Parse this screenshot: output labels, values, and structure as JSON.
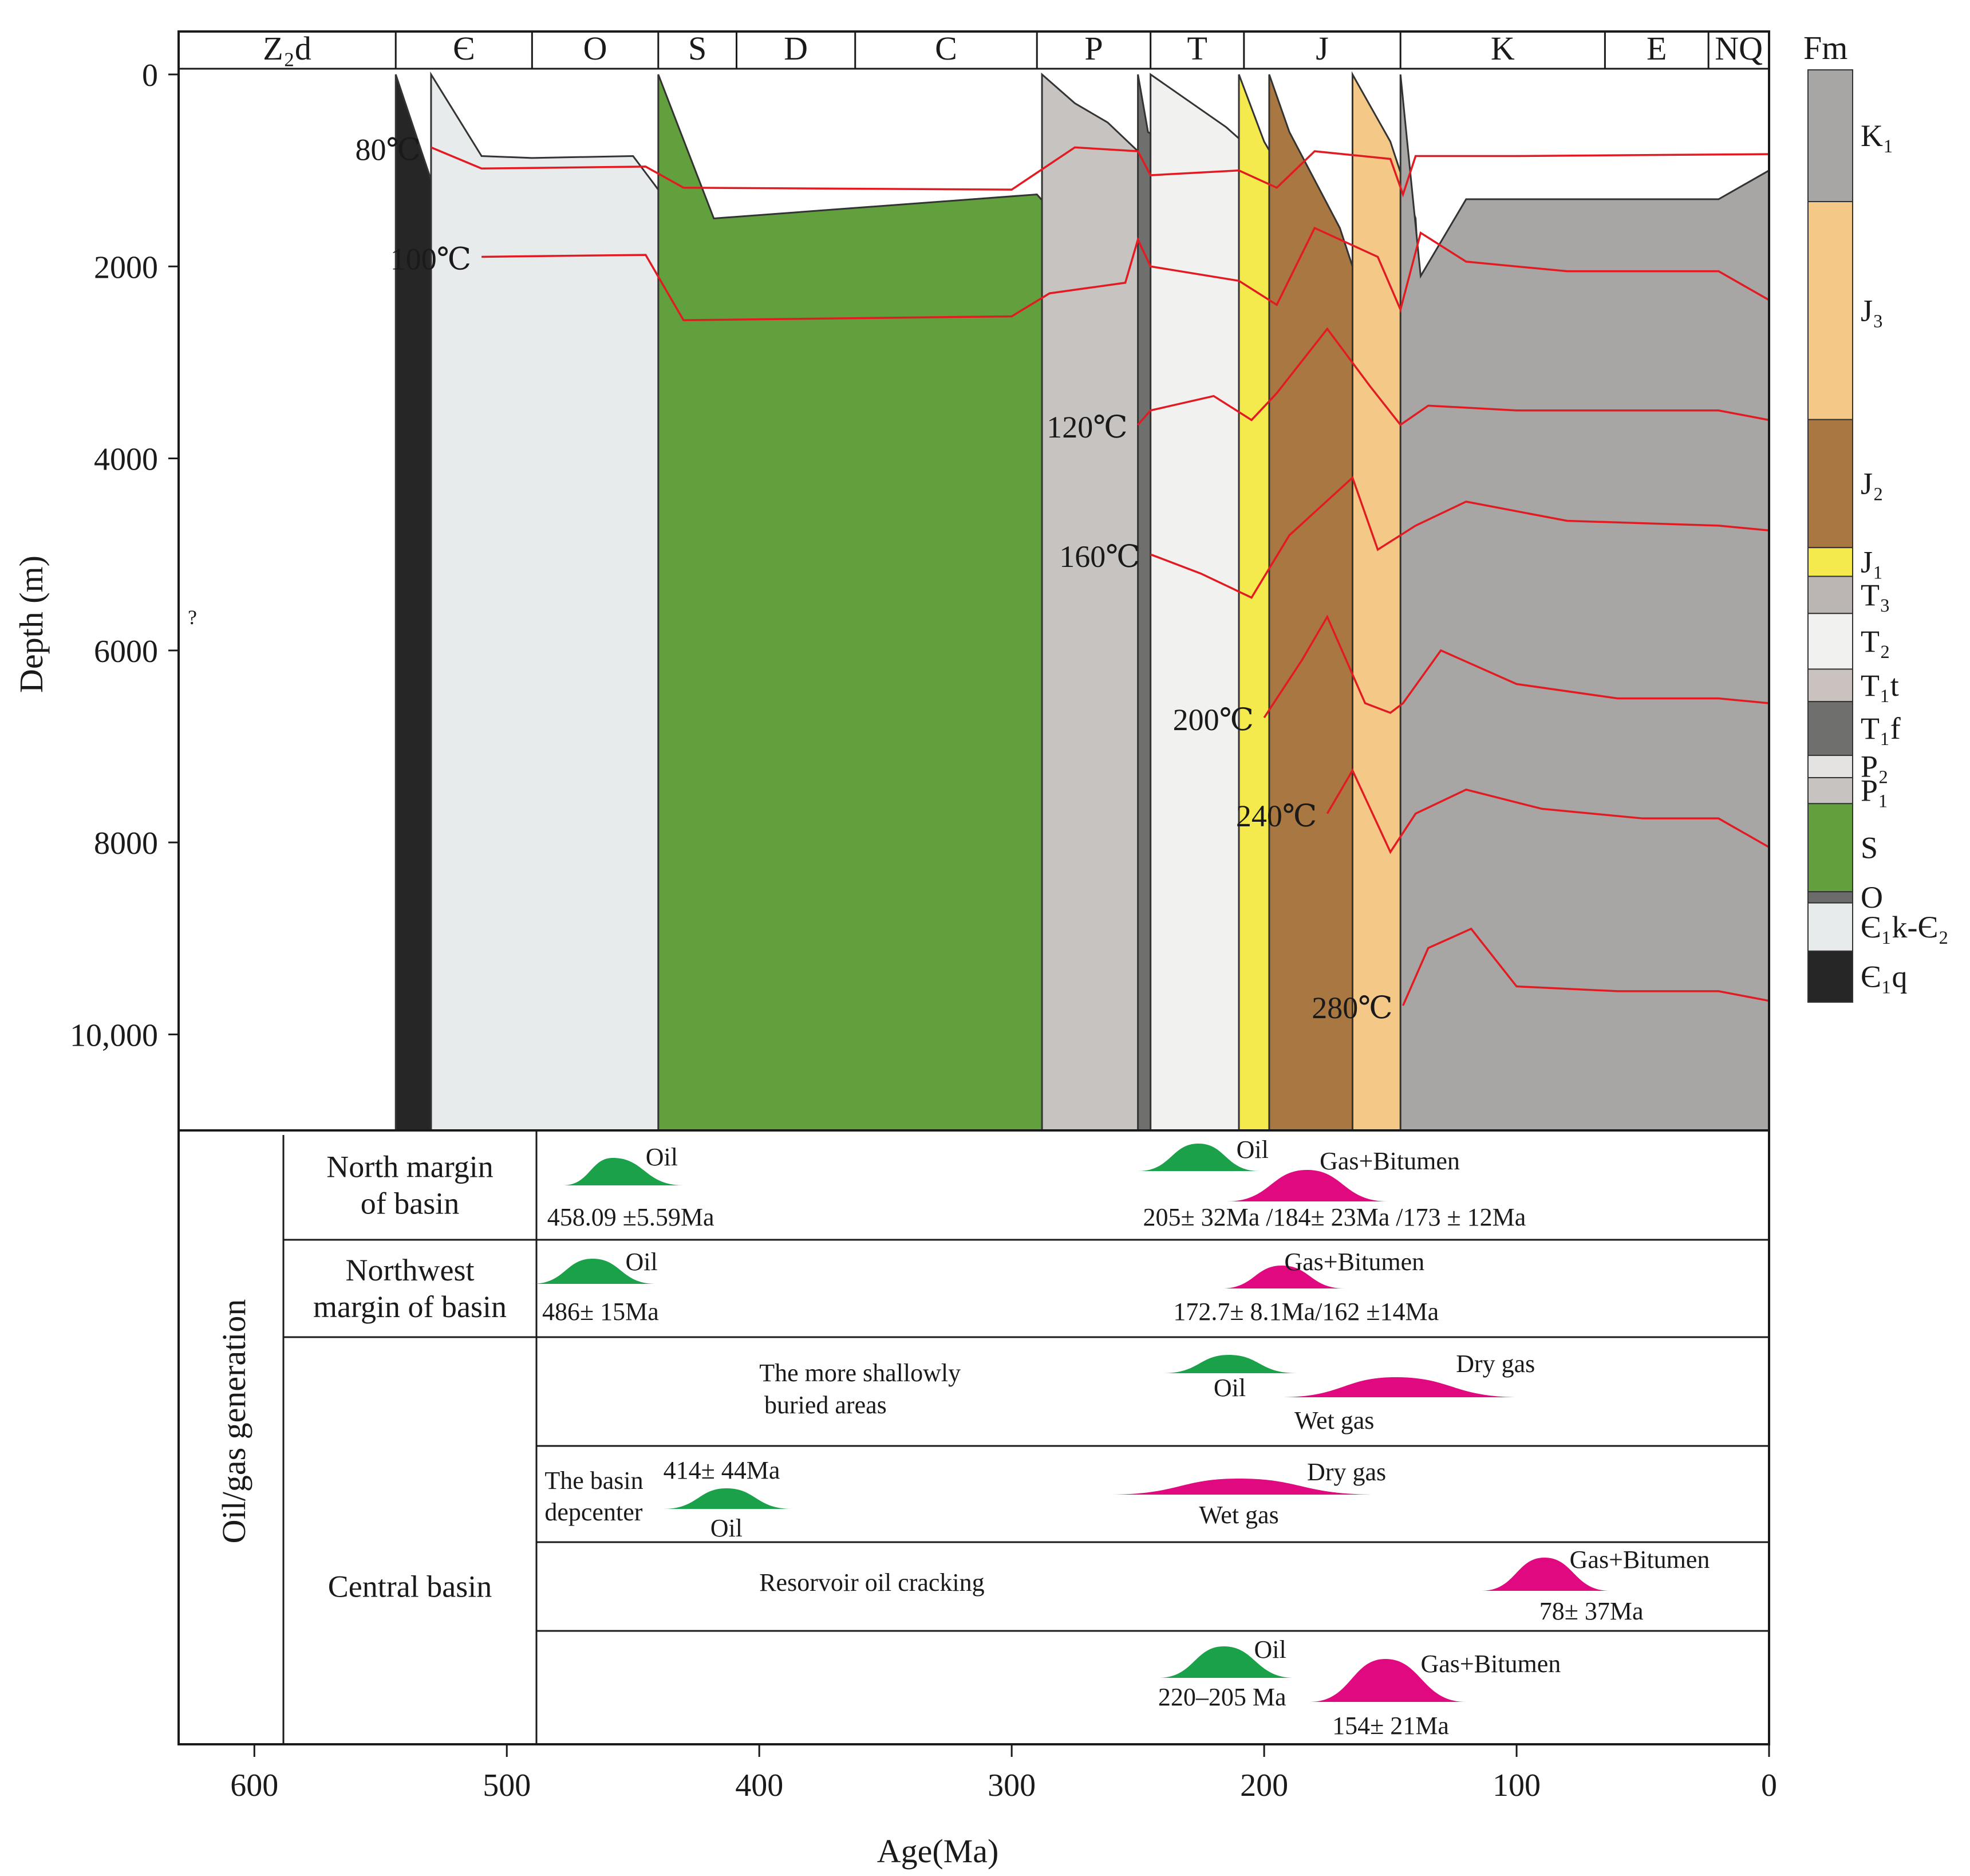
{
  "chart_data": {
    "type": "area",
    "title": "",
    "xlabel": "Age(Ma)",
    "ylabel": "Depth (m)",
    "xlim": [
      630,
      0
    ],
    "ylim": [
      0,
      11000
    ],
    "x_ticks": [
      600,
      500,
      400,
      300,
      200,
      100,
      0
    ],
    "y_ticks": [
      0,
      2000,
      4000,
      6000,
      8000,
      10000
    ],
    "y_tick_labels": [
      "0",
      "2000",
      "4000",
      "6000",
      "8000",
      "10,000"
    ],
    "periods": [
      {
        "name": "Z₂d",
        "start": 630,
        "end": 544
      },
      {
        "name": "Є",
        "start": 544,
        "end": 490
      },
      {
        "name": "O",
        "start": 490,
        "end": 440
      },
      {
        "name": "S",
        "start": 440,
        "end": 409
      },
      {
        "name": "D",
        "start": 409,
        "end": 362
      },
      {
        "name": "C",
        "start": 362,
        "end": 290
      },
      {
        "name": "P",
        "start": 290,
        "end": 245
      },
      {
        "name": "T",
        "start": 245,
        "end": 208
      },
      {
        "name": "J",
        "start": 208,
        "end": 146
      },
      {
        "name": "K",
        "start": 146,
        "end": 65
      },
      {
        "name": "E",
        "start": 65,
        "end": 24
      },
      {
        "name": "NQ",
        "start": 24,
        "end": 0
      }
    ],
    "legend_title": "Fm",
    "formations": [
      {
        "name": "K₁",
        "color": "#a7a6a4"
      },
      {
        "name": "J₃",
        "color": "#f4c987"
      },
      {
        "name": "J₂",
        "color": "#a97741"
      },
      {
        "name": "J₁",
        "color": "#f4ea4e"
      },
      {
        "name": "T₃",
        "color": "#bbb6b3"
      },
      {
        "name": "T₂",
        "color": "#f1f1f0"
      },
      {
        "name": "T₁t",
        "color": "#c9c2bf"
      },
      {
        "name": "T₁f",
        "color": "#6f706e"
      },
      {
        "name": "P₂",
        "color": "#e4e3e1"
      },
      {
        "name": "P₁",
        "color": "#c7c3c0"
      },
      {
        "name": "S",
        "color": "#62a03d"
      },
      {
        "name": "O",
        "color": "#6b6b6b"
      },
      {
        "name": "Є₁k-Є₂",
        "color": "#e8ebec"
      },
      {
        "name": "Є₁q",
        "color": "#262626"
      }
    ],
    "strata_tops_m": [
      {
        "fm": "Є₁q",
        "points": [
          [
            544,
            0
          ],
          [
            530,
            1100
          ],
          [
            515,
            1900
          ],
          [
            505,
            2000
          ],
          [
            480,
            1950
          ],
          [
            445,
            2000
          ],
          [
            430,
            2700
          ],
          [
            300,
            2600
          ],
          [
            290,
            2900
          ],
          [
            260,
            3200
          ],
          [
            250,
            3700
          ],
          [
            245,
            4600
          ],
          [
            215,
            5300
          ],
          [
            200,
            6100
          ],
          [
            175,
            7100
          ],
          [
            150,
            8600
          ],
          [
            140,
            9600
          ],
          [
            125,
            10100
          ],
          [
            100,
            9200
          ],
          [
            45,
            9300
          ],
          [
            20,
            9300
          ],
          [
            0,
            9000
          ]
        ]
      },
      {
        "fm": "Є₁k-Є₂",
        "points": [
          [
            530,
            0
          ],
          [
            510,
            850
          ],
          [
            490,
            870
          ],
          [
            450,
            850
          ],
          [
            440,
            1200
          ],
          [
            418,
            2500
          ],
          [
            300,
            2400
          ],
          [
            285,
            2700
          ],
          [
            258,
            2950
          ],
          [
            248,
            3400
          ],
          [
            245,
            3900
          ],
          [
            215,
            4600
          ],
          [
            200,
            5400
          ],
          [
            175,
            6300
          ],
          [
            150,
            7700
          ],
          [
            140,
            8800
          ],
          [
            125,
            9300
          ],
          [
            100,
            8300
          ],
          [
            45,
            8350
          ],
          [
            20,
            8300
          ],
          [
            0,
            7900
          ]
        ]
      },
      {
        "fm": "S",
        "points": [
          [
            440,
            0
          ],
          [
            418,
            1500
          ],
          [
            290,
            1250
          ],
          [
            275,
            1700
          ],
          [
            250,
            2000
          ],
          [
            245,
            2500
          ],
          [
            215,
            3300
          ],
          [
            200,
            4200
          ],
          [
            175,
            5300
          ],
          [
            150,
            6700
          ],
          [
            138,
            7800
          ],
          [
            125,
            8100
          ],
          [
            100,
            7600
          ],
          [
            45,
            7600
          ],
          [
            20,
            7600
          ],
          [
            0,
            7400
          ]
        ]
      },
      {
        "fm": "P₁",
        "points": [
          [
            288,
            0
          ],
          [
            275,
            300
          ],
          [
            262,
            500
          ],
          [
            250,
            800
          ],
          [
            246,
            1100
          ],
          [
            215,
            1500
          ],
          [
            200,
            2300
          ],
          [
            175,
            3400
          ],
          [
            150,
            5000
          ],
          [
            140,
            6400
          ],
          [
            125,
            7000
          ],
          [
            100,
            6900
          ],
          [
            20,
            6900
          ],
          [
            0,
            6300
          ]
        ]
      },
      {
        "fm": "T₁f",
        "points": [
          [
            250,
            0
          ],
          [
            248,
            300
          ],
          [
            246,
            600
          ],
          [
            215,
            1100
          ],
          [
            200,
            1800
          ],
          [
            175,
            3000
          ],
          [
            150,
            4600
          ],
          [
            138,
            5800
          ],
          [
            125,
            6300
          ],
          [
            100,
            6300
          ],
          [
            20,
            6300
          ],
          [
            0,
            5400
          ]
        ]
      },
      {
        "fm": "T₂",
        "points": [
          [
            245,
            0
          ],
          [
            215,
            550
          ],
          [
            200,
            900
          ],
          [
            175,
            2000
          ],
          [
            150,
            3700
          ],
          [
            140,
            4900
          ],
          [
            125,
            5500
          ],
          [
            100,
            5400
          ],
          [
            20,
            5400
          ],
          [
            0,
            4700
          ]
        ]
      },
      {
        "fm": "J₁",
        "points": [
          [
            210,
            0
          ],
          [
            200,
            700
          ],
          [
            180,
            1600
          ],
          [
            160,
            3000
          ],
          [
            145,
            4500
          ],
          [
            137,
            5800
          ],
          [
            120,
            5500
          ],
          [
            20,
            5000
          ],
          [
            0,
            4600
          ]
        ]
      },
      {
        "fm": "J₂",
        "points": [
          [
            198,
            0
          ],
          [
            190,
            600
          ],
          [
            170,
            1600
          ],
          [
            155,
            2800
          ],
          [
            140,
            4200
          ],
          [
            136,
            5600
          ],
          [
            120,
            5000
          ],
          [
            20,
            4700
          ],
          [
            0,
            2300
          ]
        ]
      },
      {
        "fm": "J₃",
        "points": [
          [
            165,
            0
          ],
          [
            150,
            700
          ],
          [
            140,
            1500
          ],
          [
            136,
            3400
          ],
          [
            120,
            2600
          ],
          [
            20,
            2600
          ],
          [
            0,
            1000
          ]
        ]
      },
      {
        "fm": "K₁",
        "points": [
          [
            146,
            0
          ],
          [
            138,
            2100
          ],
          [
            120,
            1300
          ],
          [
            20,
            1300
          ],
          [
            0,
            1000
          ]
        ]
      }
    ],
    "isotherms": [
      {
        "label": "80℃",
        "points": [
          [
            530,
            760
          ],
          [
            510,
            980
          ],
          [
            445,
            960
          ],
          [
            430,
            1180
          ],
          [
            300,
            1200
          ],
          [
            275,
            760
          ],
          [
            250,
            800
          ],
          [
            245,
            1050
          ],
          [
            210,
            1000
          ],
          [
            195,
            1180
          ],
          [
            180,
            800
          ],
          [
            150,
            880
          ],
          [
            145,
            1250
          ],
          [
            140,
            850
          ],
          [
            100,
            850
          ],
          [
            0,
            830
          ]
        ]
      },
      {
        "label": "100℃",
        "points": [
          [
            510,
            1900
          ],
          [
            480,
            1890
          ],
          [
            445,
            1880
          ],
          [
            430,
            2560
          ],
          [
            300,
            2520
          ],
          [
            285,
            2280
          ],
          [
            255,
            2170
          ],
          [
            250,
            1720
          ],
          [
            245,
            2000
          ],
          [
            210,
            2150
          ],
          [
            195,
            2400
          ],
          [
            180,
            1600
          ],
          [
            155,
            1900
          ],
          [
            146,
            2450
          ],
          [
            138,
            1650
          ],
          [
            120,
            1950
          ],
          [
            80,
            2050
          ],
          [
            20,
            2050
          ],
          [
            0,
            2350
          ]
        ]
      },
      {
        "label": "120℃",
        "points": [
          [
            250,
            3650
          ],
          [
            245,
            3500
          ],
          [
            220,
            3350
          ],
          [
            205,
            3600
          ],
          [
            195,
            3320
          ],
          [
            175,
            2650
          ],
          [
            158,
            3250
          ],
          [
            146,
            3650
          ],
          [
            135,
            3450
          ],
          [
            100,
            3500
          ],
          [
            20,
            3500
          ],
          [
            0,
            3600
          ]
        ]
      },
      {
        "label": "160℃",
        "points": [
          [
            245,
            5000
          ],
          [
            225,
            5200
          ],
          [
            205,
            5450
          ],
          [
            190,
            4800
          ],
          [
            165,
            4200
          ],
          [
            155,
            4950
          ],
          [
            140,
            4700
          ],
          [
            120,
            4450
          ],
          [
            80,
            4650
          ],
          [
            20,
            4700
          ],
          [
            0,
            4750
          ]
        ]
      },
      {
        "label": "200℃",
        "points": [
          [
            200,
            6700
          ],
          [
            185,
            6100
          ],
          [
            175,
            5650
          ],
          [
            160,
            6550
          ],
          [
            150,
            6650
          ],
          [
            145,
            6550
          ],
          [
            130,
            6000
          ],
          [
            100,
            6350
          ],
          [
            60,
            6500
          ],
          [
            20,
            6500
          ],
          [
            0,
            6550
          ]
        ]
      },
      {
        "label": "240℃",
        "points": [
          [
            175,
            7700
          ],
          [
            165,
            7250
          ],
          [
            150,
            8100
          ],
          [
            140,
            7700
          ],
          [
            120,
            7450
          ],
          [
            90,
            7650
          ],
          [
            50,
            7750
          ],
          [
            20,
            7750
          ],
          [
            0,
            8050
          ]
        ]
      },
      {
        "label": "280℃",
        "points": [
          [
            145,
            9700
          ],
          [
            135,
            9100
          ],
          [
            118,
            8900
          ],
          [
            100,
            9500
          ],
          [
            60,
            9550
          ],
          [
            20,
            9550
          ],
          [
            0,
            9650
          ]
        ]
      }
    ],
    "unknown_marker": "?",
    "generation_panel": {
      "side_label": "Oil/gas generation",
      "rows": [
        {
          "region": "North margin of basin",
          "events": [
            {
              "fluid": "Oil",
              "start": 478,
              "end": 430,
              "peak": 458
            },
            {
              "fluid": "Oil",
              "start": 250,
              "end": 202,
              "peak": 226
            },
            {
              "fluid": "Gas+Bitumen",
              "start": 215,
              "end": 151,
              "peak": 183
            }
          ],
          "texts": [
            "Oil",
            "458.09 ±5.59Ma",
            "Oil",
            "Gas+Bitumen",
            "205± 32Ma /184± 23Ma /173 ± 12Ma"
          ]
        },
        {
          "region": "Northwest margin of basin",
          "events": [
            {
              "fluid": "Oil",
              "start": 490,
              "end": 441,
              "peak": 466
            },
            {
              "fluid": "Gas+Bitumen",
              "start": 217,
              "end": 168,
              "peak": 193
            }
          ],
          "texts": [
            "Oil",
            "486± 15Ma",
            "Gas+Bitumen",
            "172.7± 8.1Ma/162 ±14Ma"
          ]
        },
        {
          "region": "Central basin",
          "sub_rows": [
            {
              "events": [
                {
                  "fluid": "Oil",
                  "start": 240,
                  "end": 187,
                  "peak": 214
                },
                {
                  "fluid": "Wet gas → Dry gas",
                  "start": 194,
                  "end": 98,
                  "peak": 148
                }
              ],
              "texts": [
                "The more shallowly",
                "buried areas",
                "Oil",
                "Dry gas",
                "Wet gas"
              ]
            },
            {
              "events": [
                {
                  "fluid": "Oil",
                  "start": 438,
                  "end": 387,
                  "peak": 413
                },
                {
                  "fluid": "Wet gas → Dry gas",
                  "start": 262,
                  "end": 155,
                  "peak": 210
                }
              ],
              "texts": [
                "The basin",
                "depcenter",
                "414± 44Ma",
                "Oil",
                "Dry gas",
                "Wet gas"
              ]
            },
            {
              "events": [
                {
                  "fluid": "Gas+Bitumen",
                  "start": 114,
                  "end": 63,
                  "peak": 89
                }
              ],
              "texts": [
                "Resorvoir oil cracking",
                "Gas+Bitumen",
                "78± 37Ma"
              ]
            },
            {
              "events": [
                {
                  "fluid": "Oil",
                  "start": 242,
                  "end": 188,
                  "peak": 216
                },
                {
                  "fluid": "Gas+Bitumen",
                  "start": 182,
                  "end": 120,
                  "peak": 152
                }
              ],
              "texts": [
                "Oil",
                "220–205 Ma",
                "Gas+Bitumen",
                "154± 21Ma"
              ]
            }
          ]
        }
      ]
    },
    "colors": {
      "oil": "#1aa14a",
      "gas": "#e0097f",
      "isotherm": "#e21b22",
      "frame": "#1a1a1a",
      "boundary": "#333333"
    }
  }
}
